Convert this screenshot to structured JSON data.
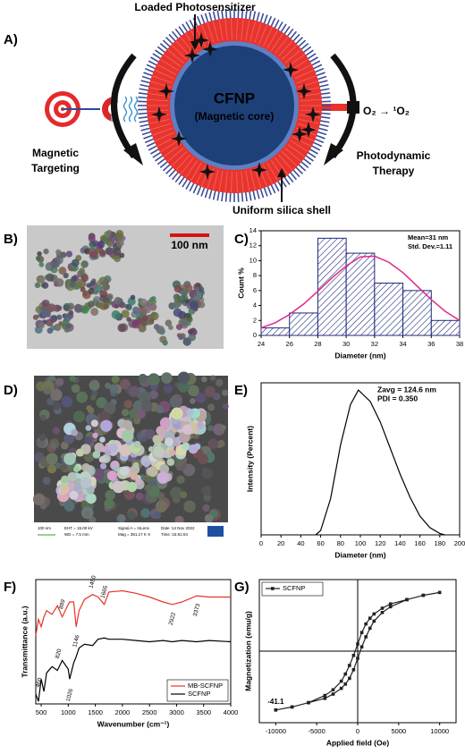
{
  "panel_labels": [
    "A)",
    "B)",
    "C)",
    "D)",
    "E)",
    "F)",
    "G)"
  ],
  "schematic": {
    "photosensitizer_label": "Loaded Photosensitizer",
    "core_label": "CFNP",
    "core_sublabel": "(Magnetic core)",
    "left_label": [
      "Magnetic",
      "Targeting"
    ],
    "right_label": [
      "Photodynamic",
      "Therapy"
    ],
    "shell_label": "Uniform silica shell",
    "reaction": "O₂ → ¹O₂"
  },
  "tem_image": {
    "scale_bar": "100 nm"
  },
  "sem_image": {
    "scale_bar": "100 nm",
    "info": [
      "EHT = 15.00 kV",
      "WD = 7.5 mm",
      "Signal A = InLens",
      "Mag = 381.17 K X",
      "Date :14 Nov 2022",
      "Time :15:51:04"
    ]
  },
  "chart_data": [
    {
      "type": "histogram",
      "bins": [
        24,
        26,
        28,
        30,
        32,
        34,
        36,
        38
      ],
      "values": [
        1,
        3,
        13,
        11,
        7,
        6,
        2
      ],
      "color": "#1f2a7a",
      "fit": {
        "color": "#e0288a",
        "x": [
          24,
          25,
          26,
          27,
          28,
          29,
          30,
          31,
          32,
          33,
          34,
          35,
          36,
          37,
          38
        ],
        "values": [
          1.0,
          1.7,
          2.8,
          4.2,
          5.9,
          7.7,
          9.3,
          10.5,
          10.6,
          9.8,
          8.4,
          6.6,
          4.8,
          3.2,
          2.0
        ]
      },
      "xlim": [
        24,
        38
      ],
      "xticks": [
        24,
        26,
        28,
        30,
        32,
        34,
        36,
        38
      ],
      "ylim": [
        0,
        14
      ],
      "yticks": [
        0,
        2,
        4,
        6,
        8,
        10,
        12,
        14
      ],
      "xlabel": "Diameter (nm)",
      "ylabel": "Count %",
      "annotations": [
        "Mean=31 nm",
        "Std. Dev.=1.11"
      ]
    },
    {
      "type": "line",
      "x": [
        55,
        60,
        70,
        80,
        90,
        98,
        110,
        120,
        130,
        140,
        150,
        160,
        170,
        180,
        185
      ],
      "series": [
        {
          "color": "#000000",
          "values": [
            0,
            3,
            25,
            62,
            90,
            100,
            92,
            78,
            60,
            42,
            26,
            13,
            5,
            1,
            0
          ]
        }
      ],
      "xlim": [
        0,
        200
      ],
      "xticks": [
        0,
        20,
        40,
        60,
        80,
        100,
        120,
        140,
        160,
        180,
        200
      ],
      "ylim": [
        0,
        105
      ],
      "xlabel": "Diameter (nm)",
      "ylabel": "Intensity (Percent)",
      "annotations": [
        "Zavg = 124.6 nm",
        "PDI = 0.350"
      ]
    },
    {
      "type": "line",
      "x": [
        400,
        450,
        500,
        550,
        600,
        700,
        800,
        889,
        1000,
        1026,
        1100,
        1146,
        1200,
        1300,
        1450,
        1550,
        1665,
        1750,
        2000,
        2250,
        2500,
        2750,
        2922,
        3100,
        3373,
        3600,
        4000
      ],
      "series": [
        {
          "name": "MB-SCFNP",
          "color": "#e8322b",
          "values": [
            55,
            68,
            62,
            70,
            75,
            72,
            79,
            70,
            80,
            82,
            82,
            62,
            75,
            84,
            88,
            86,
            80,
            90,
            91,
            89,
            86,
            82,
            80,
            82,
            87,
            86,
            86
          ],
          "peaks": [
            889,
            1146,
            1450,
            1665,
            2922,
            3373
          ]
        },
        {
          "name": "SCFNP",
          "color": "#000000",
          "values": [
            8,
            2,
            20,
            10,
            25,
            30,
            27,
            35,
            28,
            20,
            33,
            38,
            45,
            48,
            47,
            52,
            53,
            52,
            52,
            51,
            50,
            51,
            50,
            51,
            50,
            51,
            50
          ],
          "peaks": [
            460,
            820,
            1026
          ]
        }
      ],
      "xlim": [
        400,
        4000
      ],
      "xticks": [
        500,
        1000,
        1500,
        2000,
        2500,
        3000,
        3500,
        4000
      ],
      "ylim": [
        0,
        100
      ],
      "xlabel": "Wavenumber (cm⁻¹)",
      "ylabel": "Transmittance (a.u.)",
      "legend": "lower right"
    },
    {
      "type": "line",
      "marker": "square",
      "x": [
        -10000,
        -8000,
        -6000,
        -4000,
        -3000,
        -2000,
        -1500,
        -1000,
        -500,
        0,
        500,
        1000,
        1500,
        2000,
        3000,
        4000,
        6000,
        8000,
        10000,
        8000,
        6000,
        4000,
        3000,
        2000,
        1500,
        1000,
        500,
        0,
        -500,
        -1000,
        -1500,
        -2000,
        -3000,
        -4000,
        -6000,
        -8000,
        -10000
      ],
      "series": [
        {
          "name": "SCFNP",
          "color": "#222222",
          "values": [
            -41.1,
            -39,
            -36,
            -33,
            -30,
            -26,
            -23,
            -19,
            -13,
            -5,
            3,
            10,
            16,
            21,
            27,
            31,
            36,
            39,
            41,
            39,
            36,
            33,
            30,
            26,
            23,
            19,
            13,
            5,
            -3,
            -10,
            -16,
            -21,
            -27,
            -31,
            -36,
            -39,
            -41.1
          ]
        }
      ],
      "xlim": [
        -12000,
        12000
      ],
      "xticks": [
        -10000,
        -5000,
        0,
        5000,
        10000
      ],
      "ylim": [
        -50,
        50
      ],
      "xlabel": "Applied field (Oe)",
      "ylabel": "Magnetization (emu/g)",
      "annotation": -41.1,
      "legend": "upper left"
    }
  ]
}
